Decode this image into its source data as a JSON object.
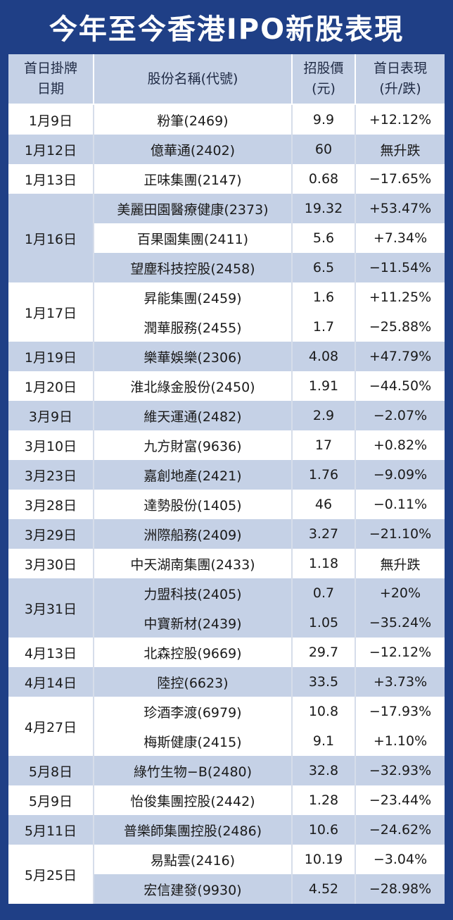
{
  "title": "今年至今香港IPO新股表現",
  "headers": {
    "date_line1": "首日掛牌",
    "date_line2": "日期",
    "name": "股份名稱(代號)",
    "price_line1": "招股價",
    "price_line2": "(元)",
    "perf_line1": "首日表現",
    "perf_line2": "(升/跌)"
  },
  "rows": [
    {
      "date": "1月9日",
      "name": "粉筆(2469)",
      "price": "9.9",
      "perf": "+12.12%"
    },
    {
      "date": "1月12日",
      "name": "億華通(2402)",
      "price": "60",
      "perf": "無升跌"
    },
    {
      "date": "1月13日",
      "name": "正味集團(2147)",
      "price": "0.68",
      "perf": "−17.65%"
    },
    {
      "date": "1月16日",
      "name": "美麗田園醫療健康(2373)",
      "price": "19.32",
      "perf": "+53.47%"
    },
    {
      "date": "",
      "name": "百果園集團(2411)",
      "price": "5.6",
      "perf": "+7.34%"
    },
    {
      "date": "",
      "name": "望塵科技控股(2458)",
      "price": "6.5",
      "perf": "−11.54%"
    },
    {
      "date": "1月17日",
      "name": "昇能集團(2459)",
      "price": "1.6",
      "perf": "+11.25%"
    },
    {
      "date": "",
      "name": "潤華服務(2455)",
      "price": "1.7",
      "perf": "−25.88%"
    },
    {
      "date": "1月19日",
      "name": "樂華娛樂(2306)",
      "price": "4.08",
      "perf": "+47.79%"
    },
    {
      "date": "1月20日",
      "name": "淮北綠金股份(2450)",
      "price": "1.91",
      "perf": "−44.50%"
    },
    {
      "date": "3月9日",
      "name": "維天運通(2482)",
      "price": "2.9",
      "perf": "−2.07%"
    },
    {
      "date": "3月10日",
      "name": "九方財富(9636)",
      "price": "17",
      "perf": "+0.82%"
    },
    {
      "date": "3月23日",
      "name": "嘉創地產(2421)",
      "price": "1.76",
      "perf": "−9.09%"
    },
    {
      "date": "3月28日",
      "name": "達勢股份(1405)",
      "price": "46",
      "perf": "−0.11%"
    },
    {
      "date": "3月29日",
      "name": "洲際船務(2409)",
      "price": "3.27",
      "perf": "−21.10%"
    },
    {
      "date": "3月30日",
      "name": "中天湖南集團(2433)",
      "price": "1.18",
      "perf": "無升跌"
    },
    {
      "date": "3月31日",
      "name": "力盟科技(2405)",
      "price": "0.7",
      "perf": "+20%"
    },
    {
      "date": "",
      "name": "中寶新材(2439)",
      "price": "1.05",
      "perf": "−35.24%"
    },
    {
      "date": "4月13日",
      "name": "北森控股(9669)",
      "price": "29.7",
      "perf": "−12.12%"
    },
    {
      "date": "4月14日",
      "name": "陸控(6623)",
      "price": "33.5",
      "perf": "+3.73%"
    },
    {
      "date": "4月27日",
      "name": "珍酒李渡(6979)",
      "price": "10.8",
      "perf": "−17.93%"
    },
    {
      "date": "",
      "name": "梅斯健康(2415)",
      "price": "9.1",
      "perf": "+1.10%"
    },
    {
      "date": "5月8日",
      "name": "綠竹生物−B(2480)",
      "price": "32.8",
      "perf": "−32.93%"
    },
    {
      "date": "5月9日",
      "name": "怡俊集團控股(2442)",
      "price": "1.28",
      "perf": "−23.44%"
    },
    {
      "date": "5月11日",
      "name": "普樂師集團控股(2486)",
      "price": "10.6",
      "perf": "−24.62%"
    },
    {
      "date": "5月25日",
      "name": "易點雲(2416)",
      "price": "10.19",
      "perf": "−3.04%"
    },
    {
      "date": "",
      "name": "宏信建發(9930)",
      "price": "4.52",
      "perf": "−28.98%"
    }
  ]
}
